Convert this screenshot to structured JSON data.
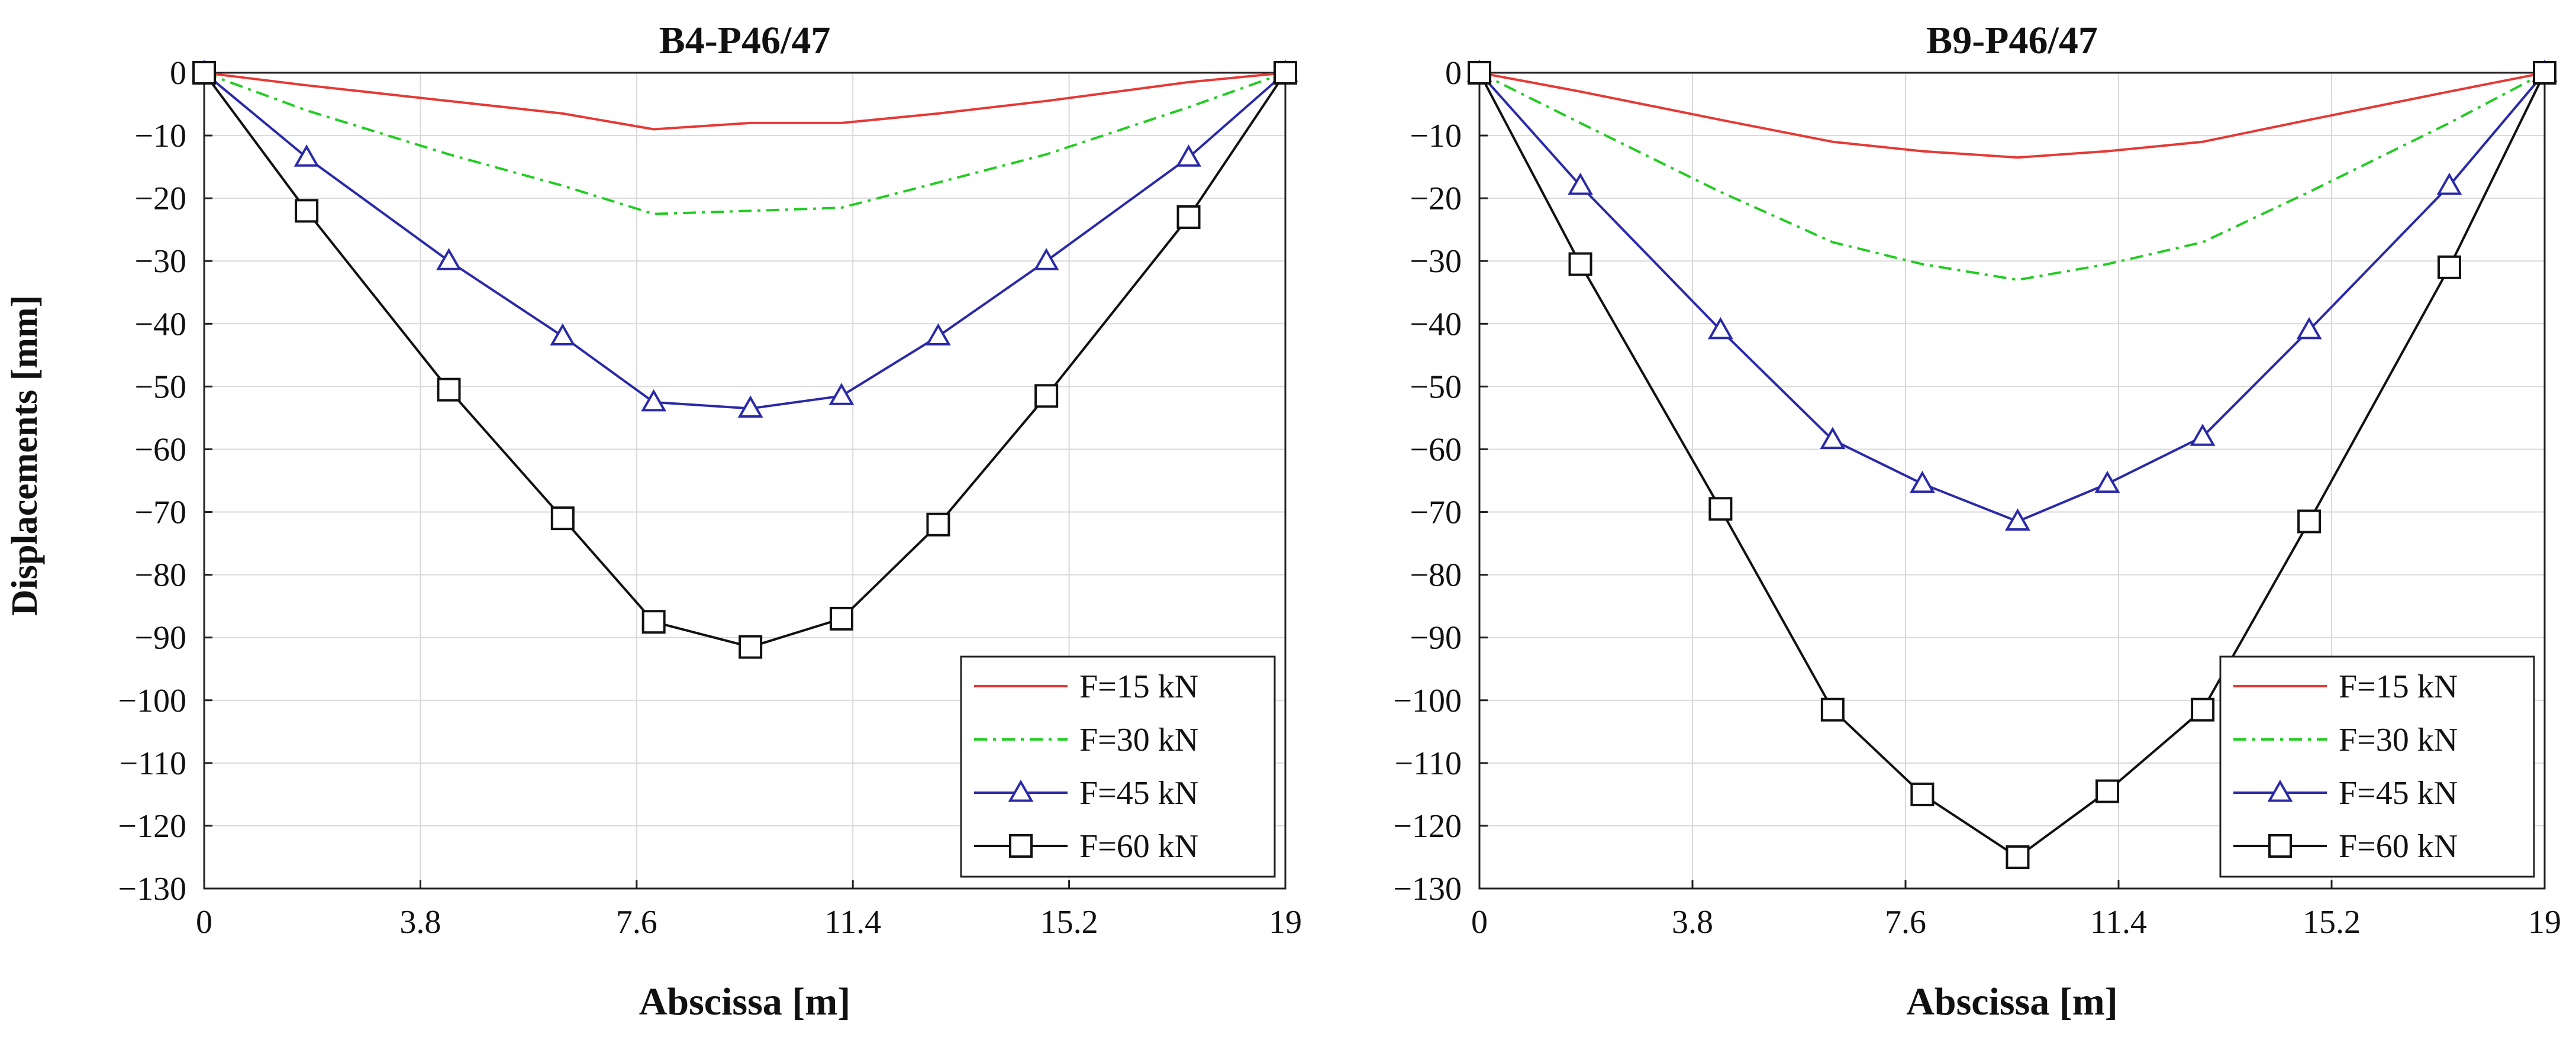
{
  "figure": {
    "ylabel": "Displacements [mm]"
  },
  "chart_data": [
    {
      "type": "line",
      "title": "B4-P46/47",
      "xlabel": "Abscissa [m]",
      "ylabel": "Displacements [mm]",
      "xlim": [
        0,
        19
      ],
      "ylim": [
        -130,
        0
      ],
      "xticks": [
        0,
        3.8,
        7.6,
        11.4,
        15.2,
        19
      ],
      "yticks": [
        0,
        -10,
        -20,
        -30,
        -40,
        -50,
        -60,
        -70,
        -80,
        -90,
        -100,
        -110,
        -120,
        -130
      ],
      "grid": true,
      "legend_position": "bottom-right",
      "series": [
        {
          "name": "F=15 kN",
          "color": "#e53935",
          "dash": "solid",
          "marker": "none",
          "x": [
            0,
            1.8,
            4.3,
            6.3,
            7.9,
            9.6,
            11.2,
            12.9,
            14.8,
            17.3,
            19
          ],
          "y": [
            0,
            -2,
            -4.5,
            -6.5,
            -9,
            -8,
            -8,
            -6.5,
            -4.5,
            -1.5,
            0
          ]
        },
        {
          "name": "F=30 kN",
          "color": "#22cc22",
          "dash": "dashdot",
          "marker": "none",
          "x": [
            0,
            1.8,
            4.3,
            6.3,
            7.9,
            9.6,
            11.2,
            12.9,
            14.8,
            17.3,
            19
          ],
          "y": [
            0,
            -6,
            -13,
            -18,
            -22.5,
            -22,
            -21.5,
            -17.5,
            -13,
            -5.5,
            0
          ]
        },
        {
          "name": "F=45 kN",
          "color": "#2a2aa8",
          "dash": "solid",
          "marker": "triangle",
          "x": [
            0,
            1.8,
            4.3,
            6.3,
            7.9,
            9.6,
            11.2,
            12.9,
            14.8,
            17.3,
            19
          ],
          "y": [
            0,
            -13.5,
            -30,
            -42,
            -52.5,
            -53.5,
            -51.5,
            -42,
            -30,
            -13.5,
            0
          ]
        },
        {
          "name": "F=60 kN",
          "color": "#111111",
          "dash": "solid",
          "marker": "square",
          "x": [
            0,
            1.8,
            4.3,
            6.3,
            7.9,
            9.6,
            11.2,
            12.9,
            14.8,
            17.3,
            19
          ],
          "y": [
            0,
            -22,
            -50.5,
            -71,
            -87.5,
            -91.5,
            -87,
            -72,
            -51.5,
            -23,
            0
          ]
        }
      ]
    },
    {
      "type": "line",
      "title": "B9-P46/47",
      "xlabel": "Abscissa [m]",
      "ylabel": "",
      "xlim": [
        0,
        19
      ],
      "ylim": [
        -130,
        0
      ],
      "xticks": [
        0,
        3.8,
        7.6,
        11.4,
        15.2,
        19
      ],
      "yticks": [
        0,
        -10,
        -20,
        -30,
        -40,
        -50,
        -60,
        -70,
        -80,
        -90,
        -100,
        -110,
        -120,
        -130
      ],
      "grid": true,
      "legend_position": "bottom-right",
      "series": [
        {
          "name": "F=15 kN",
          "color": "#e53935",
          "dash": "solid",
          "marker": "none",
          "x": [
            0,
            1.8,
            4.3,
            6.3,
            7.9,
            9.6,
            11.2,
            12.9,
            14.8,
            17.3,
            19
          ],
          "y": [
            0,
            -3,
            -7.5,
            -11,
            -12.5,
            -13.5,
            -12.5,
            -11,
            -7.5,
            -3,
            0
          ]
        },
        {
          "name": "F=30 kN",
          "color": "#22cc22",
          "dash": "dashdot",
          "marker": "none",
          "x": [
            0,
            1.8,
            4.3,
            6.3,
            7.9,
            9.6,
            11.2,
            12.9,
            14.8,
            17.3,
            19
          ],
          "y": [
            0,
            -8,
            -19,
            -27,
            -30.5,
            -33,
            -30.5,
            -27,
            -19,
            -8,
            0
          ]
        },
        {
          "name": "F=45 kN",
          "color": "#2a2aa8",
          "dash": "solid",
          "marker": "triangle",
          "x": [
            0,
            1.8,
            4.3,
            6.3,
            7.9,
            9.6,
            11.2,
            12.9,
            14.8,
            17.3,
            19
          ],
          "y": [
            0,
            -18,
            -41,
            -58.5,
            -65.5,
            -71.5,
            -65.5,
            -58,
            -41,
            -18,
            0
          ]
        },
        {
          "name": "F=60 kN",
          "color": "#111111",
          "dash": "solid",
          "marker": "square",
          "x": [
            0,
            1.8,
            4.3,
            6.3,
            7.9,
            9.6,
            11.2,
            12.9,
            14.8,
            17.3,
            19
          ],
          "y": [
            0,
            -30.5,
            -69.5,
            -101.5,
            -115,
            -125,
            -114.5,
            -101.5,
            -71.5,
            -31,
            0
          ]
        }
      ]
    }
  ]
}
